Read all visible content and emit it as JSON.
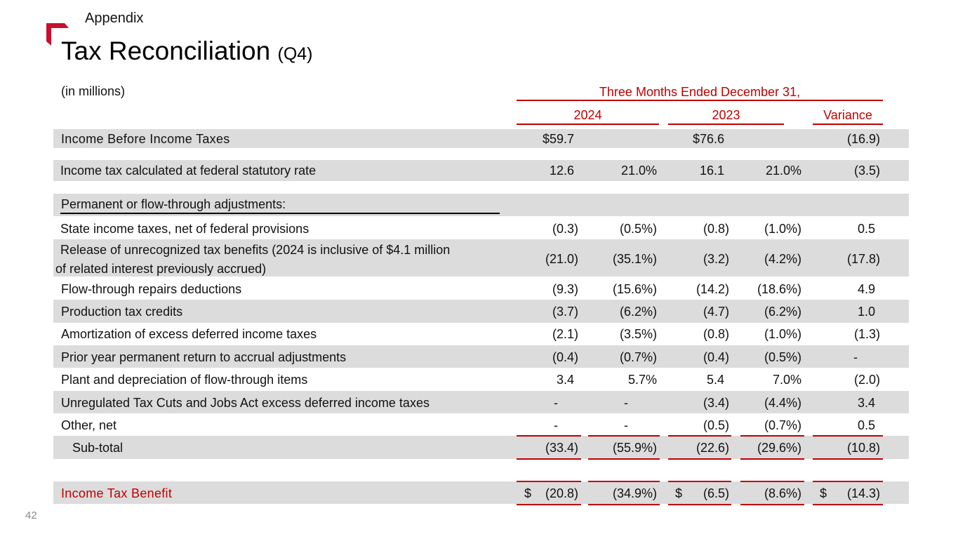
{
  "header": {
    "section": "Appendix",
    "title": "Tax Reconciliation",
    "title_suffix": "(Q4)",
    "units": "(in millions)"
  },
  "columns": {
    "period": "Three Months Ended December 31,",
    "year1": "2024",
    "year2": "2023",
    "variance": "Variance"
  },
  "rows": {
    "income_before": {
      "label": "Income Before Income Taxes",
      "v2024": "$59.7",
      "v2023": "$76.6",
      "variance": "(16.9)"
    },
    "statutory": {
      "label": "Income tax calculated at federal statutory rate",
      "v2024": "12.6",
      "p2024": "21.0%",
      "v2023": "16.1",
      "p2023": "21.0%",
      "variance": "(3.5)"
    },
    "perm_header": {
      "label": "Permanent or flow-through adjustments:"
    },
    "state": {
      "label": "State income taxes, net of federal provisions",
      "v2024": "(0.3)",
      "p2024": "(0.5%)",
      "v2023": "(0.8)",
      "p2023": "(1.0%)",
      "variance": "0.5"
    },
    "release": {
      "label_line1": "Release of unrecognized tax benefits (2024 is inclusive of $4.1 million",
      "label_line2": "of related interest previously accrued)",
      "v2024": "(21.0)",
      "p2024": "(35.1%)",
      "v2023": "(3.2)",
      "p2023": "(4.2%)",
      "variance": "(17.8)"
    },
    "repairs": {
      "label": "Flow-through repairs deductions",
      "v2024": "(9.3)",
      "p2024": "(15.6%)",
      "v2023": "(14.2)",
      "p2023": "(18.6%)",
      "variance": "4.9"
    },
    "ptc": {
      "label": "Production tax credits",
      "v2024": "(3.7)",
      "p2024": "(6.2%)",
      "v2023": "(4.7)",
      "p2023": "(6.2%)",
      "variance": "1.0"
    },
    "amort": {
      "label": "Amortization of excess deferred income taxes",
      "v2024": "(2.1)",
      "p2024": "(3.5%)",
      "v2023": "(0.8)",
      "p2023": "(1.0%)",
      "variance": "(1.3)"
    },
    "prior": {
      "label": "Prior year permanent return to accrual adjustments",
      "v2024": "(0.4)",
      "p2024": "(0.7%)",
      "v2023": "(0.4)",
      "p2023": "(0.5%)",
      "variance": "-"
    },
    "plant": {
      "label": "Plant and depreciation of flow-through items",
      "v2024": "3.4",
      "p2024": "5.7%",
      "v2023": "5.4",
      "p2023": "7.0%",
      "variance": "(2.0)"
    },
    "unreg": {
      "label": "Unregulated Tax Cuts and Jobs Act excess deferred income taxes",
      "v2024": "-",
      "p2024": "-",
      "v2023": "(3.4)",
      "p2023": "(4.4%)",
      "variance": "3.4"
    },
    "other": {
      "label": "Other, net",
      "v2024": "-",
      "p2024": "-",
      "v2023": "(0.5)",
      "p2023": "(0.7%)",
      "variance": "0.5"
    },
    "subtotal": {
      "label": "Sub-total",
      "v2024": "(33.4)",
      "p2024": "(55.9%)",
      "v2023": "(22.6)",
      "p2023": "(29.6%)",
      "variance": "(10.8)"
    },
    "benefit": {
      "label": "Income Tax Benefit",
      "cur": "$",
      "v2024": "(20.8)",
      "p2024": "(34.9%)",
      "v2023": "(6.5)",
      "p2023": "(8.6%)",
      "variance": "(14.3)"
    }
  },
  "page_number": "42",
  "colors": {
    "accent": "#c00000",
    "band": "#dcdcdc"
  }
}
